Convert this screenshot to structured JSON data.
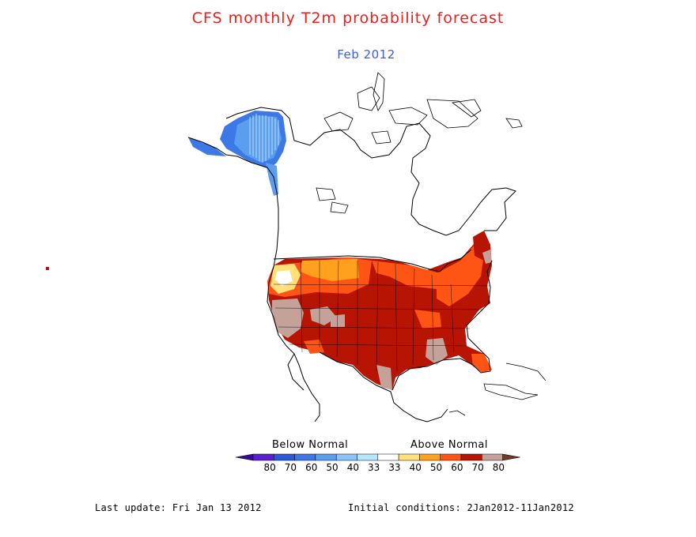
{
  "title": "CFS monthly T2m probability forecast",
  "subtitle": "Feb 2012",
  "legend": {
    "below_label": "Below Normal",
    "above_label": "Above Normal",
    "bins": [
      {
        "label": "80",
        "color": "#5a1fcf"
      },
      {
        "label": "70",
        "color": "#2a5ad8"
      },
      {
        "label": "60",
        "color": "#3c78e6"
      },
      {
        "label": "50",
        "color": "#5a9ef0"
      },
      {
        "label": "40",
        "color": "#8cc4f8"
      },
      {
        "label": "33",
        "color": "#b4e6ff"
      },
      {
        "label": "33",
        "color": "#ffffff"
      },
      {
        "label": "40",
        "color": "#ffe07a"
      },
      {
        "label": "50",
        "color": "#ffa01e"
      },
      {
        "label": "60",
        "color": "#ff5514"
      },
      {
        "label": "70",
        "color": "#b81404"
      },
      {
        "label": "80",
        "color": "#c4a29a"
      }
    ],
    "arrow_left_color": "#3a0aa0",
    "arrow_right_color": "#6e3a2a"
  },
  "footer": {
    "last_update": "Last update: Fri Jan 13 2012",
    "initial_conditions": "Initial conditions: 2Jan2012-11Jan2012"
  },
  "colors": {
    "title": "#e8201e",
    "subtitle": "#3a5ee6",
    "coast": "#000000"
  }
}
